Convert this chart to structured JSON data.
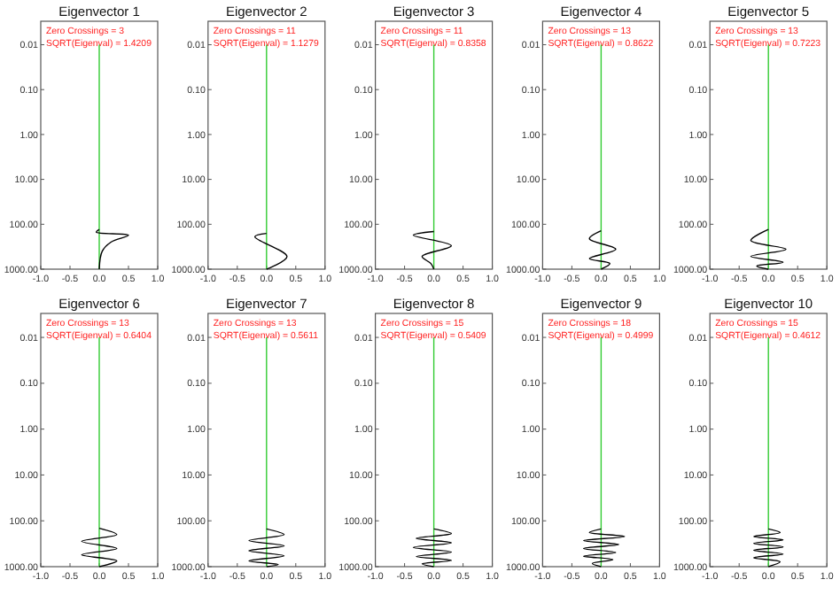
{
  "chart_data": [
    {
      "type": "line",
      "title": "Eigenvector 1",
      "annotations": [
        "Zero Crossings = 3",
        "SQRT(Eigenval) = 1.4209"
      ],
      "log": "y",
      "xlim": [
        -1,
        1
      ],
      "xticks": [
        {
          "value": -1,
          "label": "-1.0"
        },
        {
          "value": -0.5,
          "label": "-0.5"
        },
        {
          "value": 0,
          "label": "0.0"
        },
        {
          "value": 0.5,
          "label": "0.5"
        },
        {
          "value": 1,
          "label": "1.0"
        }
      ],
      "ylim": [
        1000,
        0.003
      ],
      "yticks": [
        {
          "value": 0.01,
          "label": "0.01"
        },
        {
          "value": 0.1,
          "label": "0.10"
        },
        {
          "value": 1,
          "label": "1.00"
        },
        {
          "value": 10,
          "label": "10.00"
        },
        {
          "value": 100,
          "label": "100.00"
        },
        {
          "value": 1000,
          "label": "1000.00"
        }
      ],
      "series": [
        {
          "color": "#33cc33",
          "x": [
            0,
            0
          ],
          "values": [
            0.01,
            1000
          ]
        },
        {
          "color": "#000000",
          "x": [
            0,
            -0.05,
            0.5,
            0.2,
            0.05,
            0
          ],
          "values": [
            130,
            150,
            175,
            250,
            400,
            1000
          ]
        }
      ]
    },
    {
      "type": "line",
      "title": "Eigenvector 2",
      "annotations": [
        "Zero Crossings = 11",
        "SQRT(Eigenval) = 1.1279"
      ],
      "log": "y",
      "xlim": [
        -1,
        1
      ],
      "xticks": [
        {
          "value": -1,
          "label": "-1.0"
        },
        {
          "value": -0.5,
          "label": "-0.5"
        },
        {
          "value": 0,
          "label": "0.0"
        },
        {
          "value": 0.5,
          "label": "0.5"
        },
        {
          "value": 1,
          "label": "1.0"
        }
      ],
      "ylim": [
        1000,
        0.003
      ],
      "yticks": [
        {
          "value": 0.01,
          "label": "0.01"
        },
        {
          "value": 0.1,
          "label": "0.10"
        },
        {
          "value": 1,
          "label": "1.00"
        },
        {
          "value": 10,
          "label": "10.00"
        },
        {
          "value": 100,
          "label": "100.00"
        },
        {
          "value": 1000,
          "label": "1000.00"
        }
      ],
      "series": [
        {
          "color": "#33cc33",
          "x": [
            0,
            0
          ],
          "values": [
            0.01,
            1000
          ]
        },
        {
          "color": "#000000",
          "x": [
            0,
            -0.2,
            0.35,
            0
          ],
          "values": [
            160,
            190,
            525,
            1000
          ]
        }
      ]
    },
    {
      "type": "line",
      "title": "Eigenvector 3",
      "annotations": [
        "Zero Crossings = 11",
        "SQRT(Eigenval) = 0.8358"
      ],
      "log": "y",
      "xlim": [
        -1,
        1
      ],
      "xticks": [
        {
          "value": -1,
          "label": "-1.0"
        },
        {
          "value": -0.5,
          "label": "-0.5"
        },
        {
          "value": 0,
          "label": "0.0"
        },
        {
          "value": 0.5,
          "label": "0.5"
        },
        {
          "value": 1,
          "label": "1.0"
        }
      ],
      "ylim": [
        1000,
        0.003
      ],
      "yticks": [
        {
          "value": 0.01,
          "label": "0.01"
        },
        {
          "value": 0.1,
          "label": "0.10"
        },
        {
          "value": 1,
          "label": "1.00"
        },
        {
          "value": 10,
          "label": "10.00"
        },
        {
          "value": 100,
          "label": "100.00"
        },
        {
          "value": 1000,
          "label": "1000.00"
        }
      ],
      "series": [
        {
          "color": "#33cc33",
          "x": [
            0,
            0
          ],
          "values": [
            0.01,
            1000
          ]
        },
        {
          "color": "#000000",
          "x": [
            0,
            -0.35,
            0.3,
            -0.2,
            -0.05,
            0
          ],
          "values": [
            145,
            175,
            300,
            520,
            750,
            1000
          ]
        }
      ]
    },
    {
      "type": "line",
      "title": "Eigenvector 4",
      "annotations": [
        "Zero Crossings = 13",
        "SQRT(Eigenval) = 0.8622"
      ],
      "log": "y",
      "xlim": [
        -1,
        1
      ],
      "xticks": [
        {
          "value": -1,
          "label": "-1.0"
        },
        {
          "value": -0.5,
          "label": "-0.5"
        },
        {
          "value": 0,
          "label": "0.0"
        },
        {
          "value": 0.5,
          "label": "0.5"
        },
        {
          "value": 1,
          "label": "1.0"
        }
      ],
      "ylim": [
        1000,
        0.003
      ],
      "yticks": [
        {
          "value": 0.01,
          "label": "0.01"
        },
        {
          "value": 0.1,
          "label": "0.10"
        },
        {
          "value": 1,
          "label": "1.00"
        },
        {
          "value": 10,
          "label": "10.00"
        },
        {
          "value": 100,
          "label": "100.00"
        },
        {
          "value": 1000,
          "label": "1000.00"
        }
      ],
      "series": [
        {
          "color": "#33cc33",
          "x": [
            0,
            0
          ],
          "values": [
            0.01,
            1000
          ]
        },
        {
          "color": "#000000",
          "x": [
            0,
            -0.2,
            0.25,
            -0.2,
            0.15,
            0
          ],
          "values": [
            140,
            210,
            360,
            580,
            750,
            1000
          ]
        }
      ]
    },
    {
      "type": "line",
      "title": "Eigenvector 5",
      "annotations": [
        "Zero Crossings = 13",
        "SQRT(Eigenval) = 0.7223"
      ],
      "log": "y",
      "xlim": [
        -1,
        1
      ],
      "xticks": [
        {
          "value": -1,
          "label": "-1.0"
        },
        {
          "value": -0.5,
          "label": "-0.5"
        },
        {
          "value": 0,
          "label": "0.0"
        },
        {
          "value": 0.5,
          "label": "0.5"
        },
        {
          "value": 1,
          "label": "1.0"
        }
      ],
      "ylim": [
        1000,
        0.003
      ],
      "yticks": [
        {
          "value": 0.01,
          "label": "0.01"
        },
        {
          "value": 0.1,
          "label": "0.10"
        },
        {
          "value": 1,
          "label": "1.00"
        },
        {
          "value": 10,
          "label": "10.00"
        },
        {
          "value": 100,
          "label": "100.00"
        },
        {
          "value": 1000,
          "label": "1000.00"
        }
      ],
      "series": [
        {
          "color": "#33cc33",
          "x": [
            0,
            0
          ],
          "values": [
            0.01,
            1000
          ]
        },
        {
          "color": "#000000",
          "x": [
            0,
            -0.3,
            0.3,
            -0.3,
            0.25,
            -0.2,
            0
          ],
          "values": [
            130,
            230,
            360,
            520,
            700,
            850,
            1000
          ]
        }
      ]
    },
    {
      "type": "line",
      "title": "Eigenvector 6",
      "annotations": [
        "Zero Crossings = 13",
        "SQRT(Eigenval) = 0.6404"
      ],
      "log": "y",
      "xlim": [
        -1,
        1
      ],
      "xticks": [
        {
          "value": -1,
          "label": "-1.0"
        },
        {
          "value": -0.5,
          "label": "-0.5"
        },
        {
          "value": 0,
          "label": "0.0"
        },
        {
          "value": 0.5,
          "label": "0.5"
        },
        {
          "value": 1,
          "label": "1.0"
        }
      ],
      "ylim": [
        1000,
        0.003
      ],
      "yticks": [
        {
          "value": 0.01,
          "label": "0.01"
        },
        {
          "value": 0.1,
          "label": "0.10"
        },
        {
          "value": 1,
          "label": "1.00"
        },
        {
          "value": 10,
          "label": "10.00"
        },
        {
          "value": 100,
          "label": "100.00"
        },
        {
          "value": 1000,
          "label": "1000.00"
        }
      ],
      "series": [
        {
          "color": "#33cc33",
          "x": [
            0,
            0
          ],
          "values": [
            0.01,
            1000
          ]
        },
        {
          "color": "#000000",
          "x": [
            0,
            0.3,
            -0.3,
            0.3,
            -0.3,
            0.3,
            0
          ],
          "values": [
            145,
            200,
            280,
            400,
            550,
            750,
            1000
          ]
        }
      ]
    },
    {
      "type": "line",
      "title": "Eigenvector 7",
      "annotations": [
        "Zero Crossings = 13",
        "SQRT(Eigenval) = 0.5611"
      ],
      "log": "y",
      "xlim": [
        -1,
        1
      ],
      "xticks": [
        {
          "value": -1,
          "label": "-1.0"
        },
        {
          "value": -0.5,
          "label": "-0.5"
        },
        {
          "value": 0,
          "label": "0.0"
        },
        {
          "value": 0.5,
          "label": "0.5"
        },
        {
          "value": 1,
          "label": "1.0"
        }
      ],
      "ylim": [
        1000,
        0.003
      ],
      "yticks": [
        {
          "value": 0.01,
          "label": "0.01"
        },
        {
          "value": 0.1,
          "label": "0.10"
        },
        {
          "value": 1,
          "label": "1.00"
        },
        {
          "value": 10,
          "label": "10.00"
        },
        {
          "value": 100,
          "label": "100.00"
        },
        {
          "value": 1000,
          "label": "1000.00"
        }
      ],
      "series": [
        {
          "color": "#33cc33",
          "x": [
            0,
            0
          ],
          "values": [
            0.01,
            1000
          ]
        },
        {
          "color": "#000000",
          "x": [
            0,
            0.3,
            -0.3,
            0.3,
            -0.3,
            0.3,
            -0.3,
            0.2,
            0
          ],
          "values": [
            150,
            200,
            270,
            350,
            450,
            580,
            750,
            900,
            1000
          ]
        }
      ]
    },
    {
      "type": "line",
      "title": "Eigenvector 8",
      "annotations": [
        "Zero Crossings = 15",
        "SQRT(Eigenval) = 0.5409"
      ],
      "log": "y",
      "xlim": [
        -1,
        1
      ],
      "xticks": [
        {
          "value": -1,
          "label": "-1.0"
        },
        {
          "value": -0.5,
          "label": "-0.5"
        },
        {
          "value": 0,
          "label": "0.0"
        },
        {
          "value": 0.5,
          "label": "0.5"
        },
        {
          "value": 1,
          "label": "1.0"
        }
      ],
      "ylim": [
        1000,
        0.003
      ],
      "yticks": [
        {
          "value": 0.01,
          "label": "0.01"
        },
        {
          "value": 0.1,
          "label": "0.10"
        },
        {
          "value": 1,
          "label": "1.00"
        },
        {
          "value": 10,
          "label": "10.00"
        },
        {
          "value": 100,
          "label": "100.00"
        },
        {
          "value": 1000,
          "label": "1000.00"
        }
      ],
      "series": [
        {
          "color": "#33cc33",
          "x": [
            0,
            0
          ],
          "values": [
            0.01,
            1000
          ]
        },
        {
          "color": "#000000",
          "x": [
            0,
            0.3,
            -0.3,
            0.3,
            -0.35,
            0.3,
            -0.3,
            0.3,
            -0.2,
            0
          ],
          "values": [
            150,
            190,
            240,
            300,
            380,
            480,
            600,
            730,
            870,
            1000
          ]
        }
      ]
    },
    {
      "type": "line",
      "title": "Eigenvector 9",
      "annotations": [
        "Zero Crossings = 18",
        "SQRT(Eigenval) = 0.4999"
      ],
      "log": "y",
      "xlim": [
        -1,
        1
      ],
      "xticks": [
        {
          "value": -1,
          "label": "-1.0"
        },
        {
          "value": -0.5,
          "label": "-0.5"
        },
        {
          "value": 0,
          "label": "0.0"
        },
        {
          "value": 0.5,
          "label": "0.5"
        },
        {
          "value": 1,
          "label": "1.0"
        }
      ],
      "ylim": [
        1000,
        0.003
      ],
      "yticks": [
        {
          "value": 0.01,
          "label": "0.01"
        },
        {
          "value": 0.1,
          "label": "0.10"
        },
        {
          "value": 1,
          "label": "1.00"
        },
        {
          "value": 10,
          "label": "10.00"
        },
        {
          "value": 100,
          "label": "100.00"
        },
        {
          "value": 1000,
          "label": "1000.00"
        }
      ],
      "series": [
        {
          "color": "#33cc33",
          "x": [
            0,
            0
          ],
          "values": [
            0.01,
            1000
          ]
        },
        {
          "color": "#000000",
          "x": [
            0,
            -0.2,
            0.4,
            -0.3,
            0.3,
            -0.3,
            0.25,
            -0.3,
            0.2,
            -0.15,
            0
          ],
          "values": [
            150,
            180,
            220,
            270,
            330,
            400,
            490,
            590,
            700,
            850,
            1000
          ]
        }
      ]
    },
    {
      "type": "line",
      "title": "Eigenvector 10",
      "annotations": [
        "Zero Crossings = 15",
        "SQRT(Eigenval) = 0.4612"
      ],
      "log": "y",
      "xlim": [
        -1,
        1
      ],
      "xticks": [
        {
          "value": -1,
          "label": "-1.0"
        },
        {
          "value": -0.5,
          "label": "-0.5"
        },
        {
          "value": 0,
          "label": "0.0"
        },
        {
          "value": 0.5,
          "label": "0.5"
        },
        {
          "value": 1,
          "label": "1.0"
        }
      ],
      "ylim": [
        1000,
        0.003
      ],
      "yticks": [
        {
          "value": 0.01,
          "label": "0.01"
        },
        {
          "value": 0.1,
          "label": "0.10"
        },
        {
          "value": 1,
          "label": "1.00"
        },
        {
          "value": 10,
          "label": "10.00"
        },
        {
          "value": 100,
          "label": "100.00"
        },
        {
          "value": 1000,
          "label": "1000.00"
        }
      ],
      "series": [
        {
          "color": "#33cc33",
          "x": [
            0,
            0
          ],
          "values": [
            0.01,
            1000
          ]
        },
        {
          "color": "#000000",
          "x": [
            0,
            0.2,
            -0.25,
            0.25,
            -0.25,
            0.25,
            -0.25,
            0.25,
            -0.25,
            0.2,
            0
          ],
          "values": [
            150,
            180,
            220,
            260,
            310,
            370,
            440,
            530,
            640,
            780,
            1000
          ]
        }
      ]
    }
  ]
}
